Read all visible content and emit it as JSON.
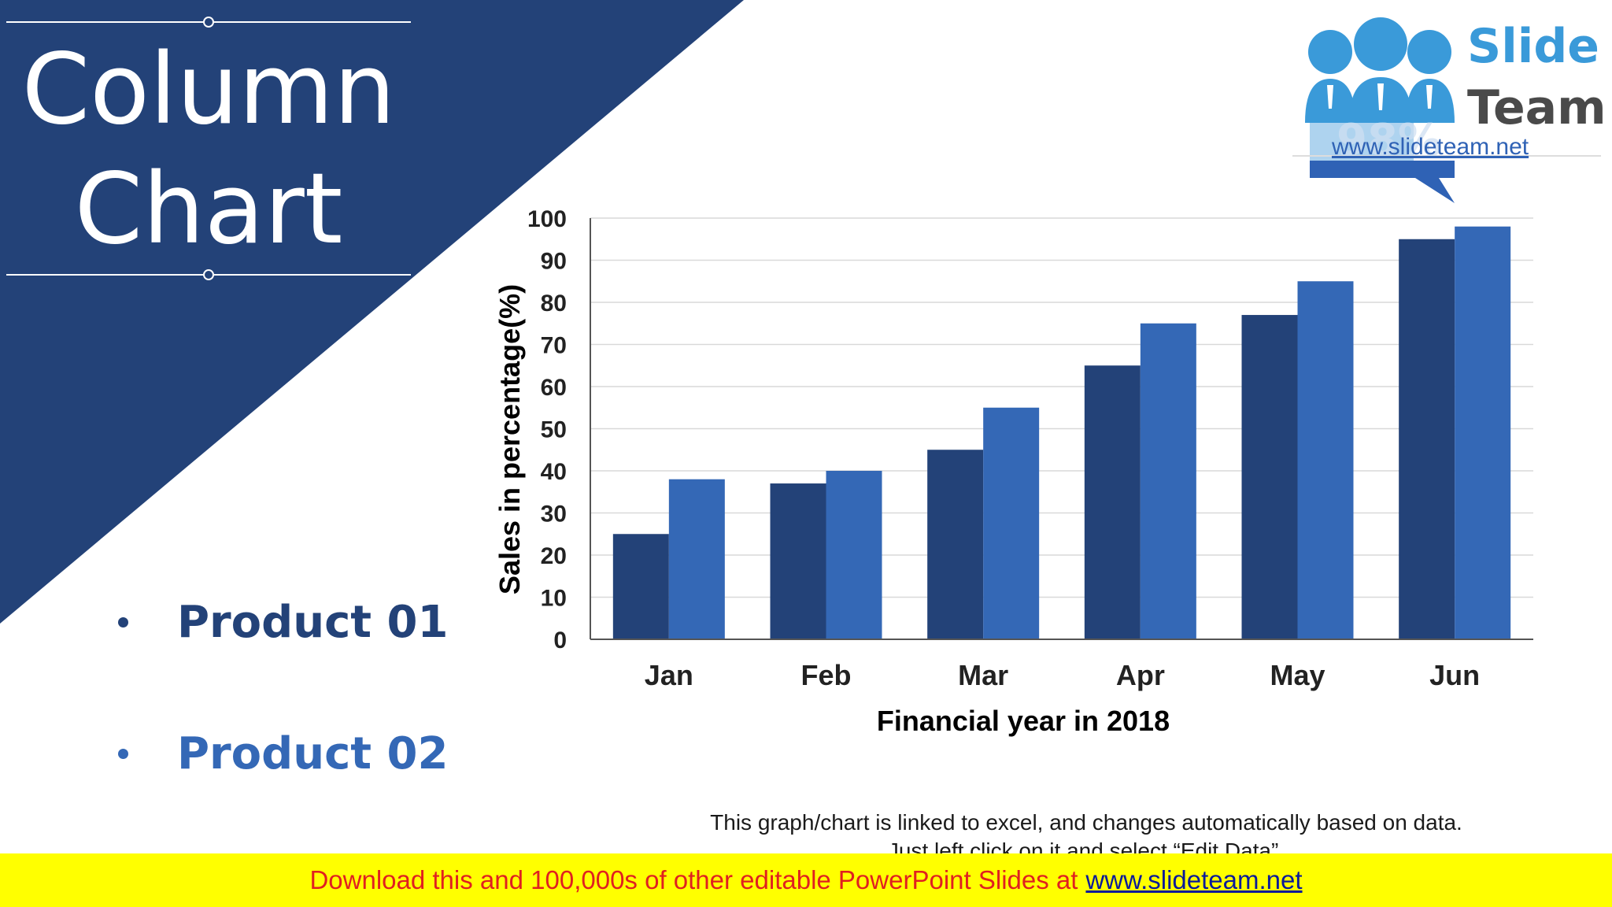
{
  "title": {
    "line1": "Column",
    "line2": "Chart"
  },
  "colors": {
    "dark_blue": "#234278",
    "light_blue": "#3468b6",
    "banner_yellow": "#ffff00",
    "banner_red": "#e02020",
    "link_blue": "#0a1a9a"
  },
  "legend": [
    {
      "label": "Product 01",
      "color": "#234278"
    },
    {
      "label": "Product 02",
      "color": "#3468b6"
    }
  ],
  "chart_data": {
    "type": "bar",
    "categories": [
      "Jan",
      "Feb",
      "Mar",
      "Apr",
      "May",
      "Jun"
    ],
    "series": [
      {
        "name": "Product 01",
        "values": [
          25,
          37,
          45,
          65,
          77,
          95
        ],
        "color": "#234278"
      },
      {
        "name": "Product 02",
        "values": [
          38,
          40,
          55,
          75,
          85,
          98
        ],
        "color": "#3468b6"
      }
    ],
    "xlabel": "Financial year in 2018",
    "ylabel": "Sales in percentage(%)",
    "ylim": [
      0,
      100
    ],
    "yticks": [
      0,
      10,
      20,
      30,
      40,
      50,
      60,
      70,
      80,
      90,
      100
    ],
    "grid": true,
    "legend_position": "left"
  },
  "note": {
    "line1": "This graph/chart is linked to excel, and changes automatically based on data.",
    "line2": "Just left click on it and select “Edit Data”."
  },
  "banner": {
    "text": "Download this and 100,000s of other editable PowerPoint Slides at",
    "link": "www.slideteam.net"
  },
  "logo": {
    "word1": "Slide",
    "word2": "Team",
    "url": "www.slideteam.net",
    "faint_text": "98%"
  }
}
